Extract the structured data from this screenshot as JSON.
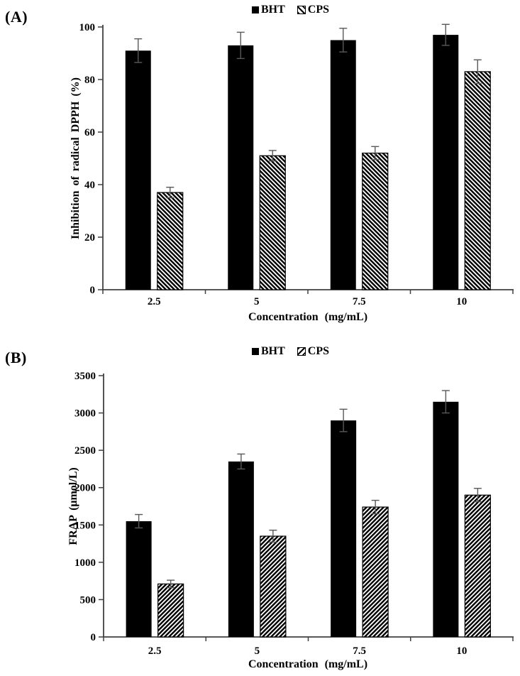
{
  "colors": {
    "background": "#ffffff",
    "bar": "#000000",
    "hatch_line": "#000000",
    "axis": "#404040",
    "error_bar": "#595959"
  },
  "chart_data": [
    {
      "panel_label": "(A)",
      "type": "bar",
      "categories": [
        "2.5",
        "5",
        "7.5",
        "10"
      ],
      "series": [
        {
          "name": "BHT",
          "fill": "solid-black",
          "values": [
            91,
            93,
            95,
            97
          ],
          "errors": [
            4.5,
            5,
            4.5,
            4
          ]
        },
        {
          "name": "CPS",
          "fill": "hatch-backslash",
          "values": [
            37,
            51,
            52,
            83
          ],
          "errors": [
            2,
            2,
            2.5,
            4.5
          ]
        }
      ],
      "xlabel": "Concentration (mg/mL)",
      "ylabel": "Inhibition of radical DPPH (%)",
      "ylim": [
        0,
        100
      ],
      "ytick_step": 20,
      "grid": false,
      "legend_position": "top-center",
      "error_bars": true
    },
    {
      "panel_label": "(B)",
      "type": "bar",
      "categories": [
        "2.5",
        "5",
        "7.5",
        "10"
      ],
      "series": [
        {
          "name": "BHT",
          "fill": "solid-black",
          "values": [
            1550,
            2350,
            2900,
            3150
          ],
          "errors": [
            90,
            100,
            150,
            150
          ]
        },
        {
          "name": "CPS",
          "fill": "hatch-forwardslash",
          "values": [
            710,
            1350,
            1740,
            1900
          ],
          "errors": [
            50,
            80,
            90,
            90
          ]
        }
      ],
      "xlabel": "Concentration (mg/mL)",
      "ylabel": "FRAP (μmol/L)",
      "ylim": [
        0,
        3500
      ],
      "ytick_step": 500,
      "grid": false,
      "legend_position": "top-center",
      "error_bars": true
    }
  ]
}
